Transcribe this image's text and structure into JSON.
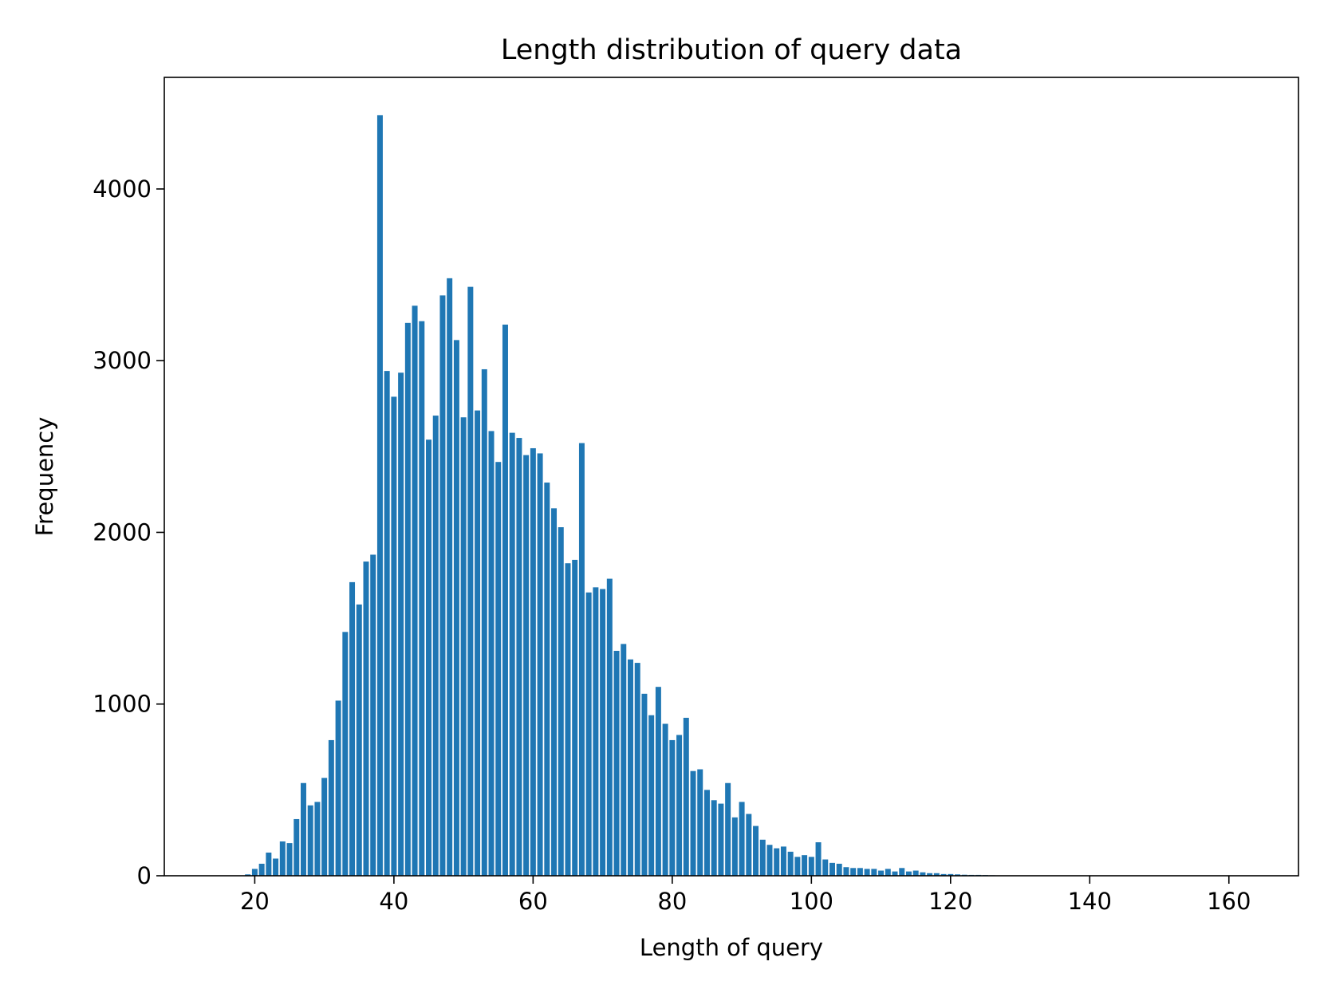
{
  "chart_data": {
    "type": "bar",
    "title": "Length distribution of query data",
    "xlabel": "Length of query",
    "ylabel": "Frequency",
    "xlim": [
      7,
      170
    ],
    "ylim": [
      0,
      4650
    ],
    "xticks": [
      20,
      40,
      60,
      80,
      100,
      120,
      140,
      160
    ],
    "yticks": [
      0,
      1000,
      2000,
      3000,
      4000
    ],
    "bar_width": 0.8,
    "color": "#1f77b4",
    "x": [
      19,
      20,
      21,
      22,
      23,
      24,
      25,
      26,
      27,
      28,
      29,
      30,
      31,
      32,
      33,
      34,
      35,
      36,
      37,
      38,
      39,
      40,
      41,
      42,
      43,
      44,
      45,
      46,
      47,
      48,
      49,
      50,
      51,
      52,
      53,
      54,
      55,
      56,
      57,
      58,
      59,
      60,
      61,
      62,
      63,
      64,
      65,
      66,
      67,
      68,
      69,
      70,
      71,
      72,
      73,
      74,
      75,
      76,
      77,
      78,
      79,
      80,
      81,
      82,
      83,
      84,
      85,
      86,
      87,
      88,
      89,
      90,
      91,
      92,
      93,
      94,
      95,
      96,
      97,
      98,
      99,
      100,
      101,
      102,
      103,
      104,
      105,
      106,
      107,
      108,
      109,
      110,
      111,
      112,
      113,
      114,
      115,
      116,
      117,
      118,
      119,
      120,
      121,
      122,
      123,
      124,
      125,
      126,
      127
    ],
    "values": [
      8,
      40,
      70,
      135,
      100,
      200,
      190,
      330,
      540,
      410,
      430,
      570,
      790,
      1020,
      1420,
      1710,
      1580,
      1830,
      1870,
      4430,
      2940,
      2790,
      2930,
      3220,
      3320,
      3230,
      2540,
      2680,
      3380,
      3480,
      3120,
      2670,
      3430,
      2710,
      2950,
      2590,
      2410,
      3210,
      2580,
      2550,
      2450,
      2490,
      2460,
      2290,
      2140,
      2030,
      1820,
      1840,
      2520,
      1650,
      1680,
      1670,
      1730,
      1310,
      1350,
      1260,
      1240,
      1060,
      935,
      1100,
      885,
      790,
      820,
      920,
      610,
      620,
      500,
      440,
      420,
      540,
      340,
      430,
      360,
      290,
      210,
      180,
      160,
      170,
      140,
      110,
      120,
      110,
      195,
      95,
      75,
      70,
      50,
      45,
      45,
      40,
      40,
      30,
      40,
      25,
      45,
      25,
      30,
      20,
      15,
      15,
      10,
      10,
      8,
      6,
      5,
      5,
      4,
      3,
      2
    ]
  }
}
